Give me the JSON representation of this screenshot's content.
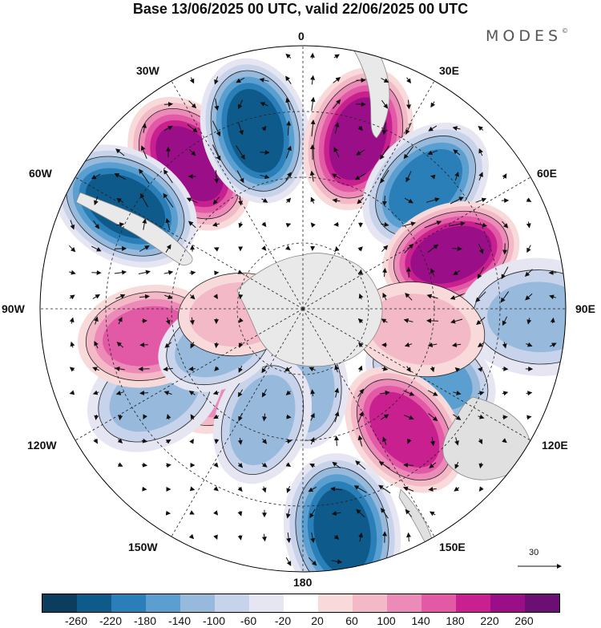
{
  "title": "Base 13/06/2025 00 UTC, valid 22/06/2025 00 UTC",
  "brand": "MODES",
  "brand_mark": "©",
  "longitude_labels": {
    "n": "0",
    "nne": "30E",
    "ene": "60E",
    "e": "90E",
    "ese": "120E",
    "sse": "150E",
    "s": "180",
    "ssw": "150W",
    "wsw": "120W",
    "w": "90W",
    "wnw": "60W",
    "nnw": "30W"
  },
  "reference_vector": {
    "value": "30"
  },
  "colorbar": {
    "colors": [
      "#0b3e5e",
      "#0e5a8a",
      "#2a7fb9",
      "#5a9fcf",
      "#97b9dc",
      "#c7d3ea",
      "#e6e6f2",
      "#ffffff",
      "#f9dada",
      "#f3b9c7",
      "#ec8ab8",
      "#e25aa6",
      "#c8208e",
      "#9a0f88",
      "#6b0f72"
    ],
    "ticks": [
      "-260",
      "-220",
      "-180",
      "-140",
      "-100",
      "-60",
      "-20",
      "20",
      "60",
      "100",
      "140",
      "180",
      "220",
      "260"
    ]
  },
  "anomaly_blobs": [
    {
      "lon": -38,
      "r": 0.7,
      "v": 230
    },
    {
      "lon": -15,
      "r": 0.7,
      "v": -200
    },
    {
      "lon": 18,
      "r": 0.68,
      "v": 200
    },
    {
      "lon": 45,
      "r": 0.66,
      "v": -190
    },
    {
      "lon": 70,
      "r": 0.6,
      "v": 220
    },
    {
      "lon": 92,
      "r": 0.9,
      "v": -110
    },
    {
      "lon": 118,
      "r": 0.55,
      "v": -120
    },
    {
      "lon": 140,
      "r": 0.6,
      "v": 170
    },
    {
      "lon": 170,
      "r": 0.86,
      "v": -200
    },
    {
      "lon": 178,
      "r": 0.3,
      "v": -80
    },
    {
      "lon": -132,
      "r": 0.4,
      "v": 110
    },
    {
      "lon": -160,
      "r": 0.45,
      "v": -80
    },
    {
      "lon": -120,
      "r": 0.65,
      "v": -90
    },
    {
      "lon": -100,
      "r": 0.6,
      "v": 150
    },
    {
      "lon": -113,
      "r": 0.35,
      "v": -90
    },
    {
      "lon": -60,
      "r": 0.78,
      "v": -200
    },
    {
      "lon": -95,
      "r": 0.25,
      "v": 50
    },
    {
      "lon": 100,
      "r": 0.45,
      "v": 40
    }
  ]
}
